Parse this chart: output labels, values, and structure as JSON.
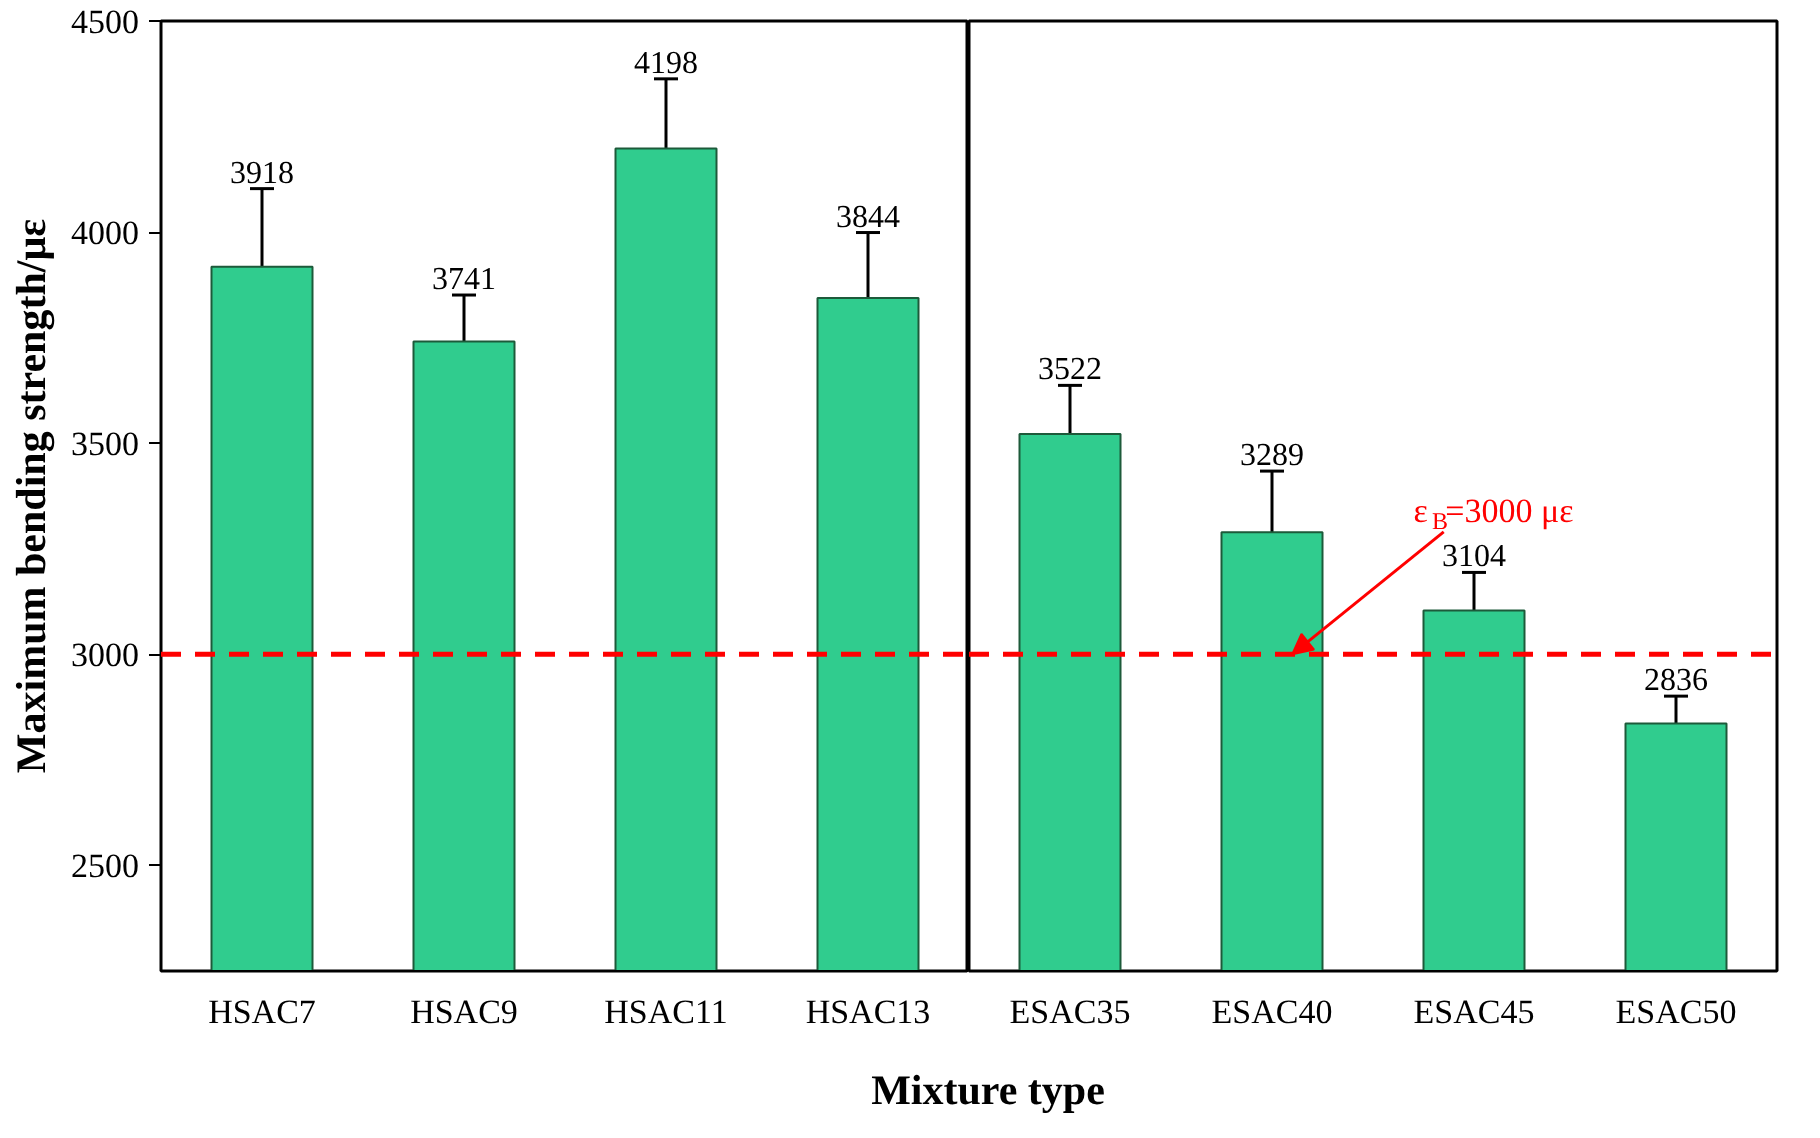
{
  "chart_data": [
    {
      "type": "bar",
      "xlabel": "Mixture type",
      "ylabel": "Maximum bending strength/με",
      "categories": [
        "HSAC7",
        "HSAC9",
        "HSAC11",
        "HSAC13"
      ],
      "values": [
        3918,
        3741,
        4198,
        3844
      ],
      "errors": [
        185,
        110,
        165,
        155
      ],
      "color": "#30cc8e",
      "data_labels": true,
      "ylim": [
        2250,
        4500
      ],
      "yticks": [
        2500,
        3000,
        3500,
        4000,
        4500
      ],
      "ref_lines": [
        {
          "axis": "y",
          "value": 3000,
          "color": "#ff0000",
          "line_style": "dashed"
        }
      ]
    },
    {
      "type": "bar",
      "categories": [
        "ESAC35",
        "ESAC40",
        "ESAC45",
        "ESAC50"
      ],
      "values": [
        3522,
        3289,
        3104,
        2836
      ],
      "errors": [
        115,
        145,
        90,
        65
      ],
      "color": "#30cc8e",
      "data_labels": true,
      "ylim": [
        2250,
        4500
      ],
      "yticks": [
        2500,
        3000,
        3500,
        4000,
        4500
      ],
      "tick_labels": "x",
      "ref_lines": [
        {
          "axis": "y",
          "value": 3000,
          "label": "ε$_{B}$=3000 με",
          "color": "#ff0000",
          "line_style": "dashed"
        }
      ]
    }
  ]
}
